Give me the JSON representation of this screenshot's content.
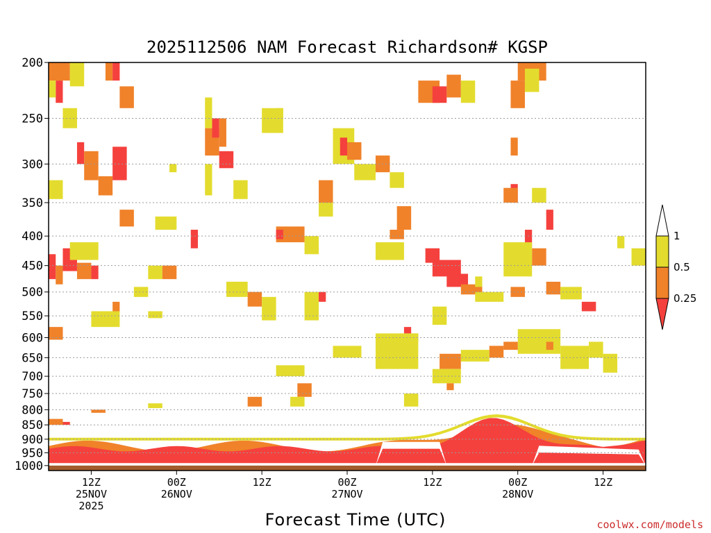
{
  "chart_data": {
    "type": "heatmap",
    "title": "2025112506 NAM Forecast Richardson# KGSP",
    "xlabel": "Forecast Time (UTC)",
    "ylabel": "",
    "credit": "coolwx.com/models",
    "x_range_hours": [
      0,
      84
    ],
    "y_axis": "pressure (hPa), log scale, inverted",
    "ylim": [
      1020,
      200
    ],
    "y_ticks": [
      "200",
      "250",
      "300",
      "350",
      "400",
      "450",
      "500",
      "550",
      "600",
      "650",
      "700",
      "750",
      "800",
      "850",
      "900",
      "950",
      "1000"
    ],
    "x_ticks": [
      {
        "hour": 6,
        "line1": "12Z",
        "line2": "25NOV",
        "line3": "2025"
      },
      {
        "hour": 18,
        "line1": "00Z",
        "line2": "26NOV",
        "line3": ""
      },
      {
        "hour": 30,
        "line1": "12Z",
        "line2": "",
        "line3": ""
      },
      {
        "hour": 42,
        "line1": "00Z",
        "line2": "27NOV",
        "line3": ""
      },
      {
        "hour": 54,
        "line1": "12Z",
        "line2": "",
        "line3": ""
      },
      {
        "hour": 66,
        "line1": "00Z",
        "line2": "28NOV",
        "line3": ""
      },
      {
        "hour": 78,
        "line1": "12Z",
        "line2": "",
        "line3": ""
      }
    ],
    "legend": {
      "levels": [
        "1",
        "0.5",
        "0.25"
      ],
      "bins": [
        {
          "name": "above 1",
          "color": "#ffffff"
        },
        {
          "name": "0.5 to 1",
          "color": "#e3dc2e"
        },
        {
          "name": "0.25 to 0.5",
          "color": "#f0822a"
        },
        {
          "name": "below 0.25",
          "color": "#f5413d"
        }
      ],
      "position": "right"
    },
    "colors": {
      "yellow": "#e3dc2e",
      "orange": "#f0822a",
      "red": "#f5413d",
      "ground": "#a25b2c",
      "grid": "#9a9a9a"
    },
    "patches": [
      {
        "t0": 0,
        "t1": 3,
        "p0": 200,
        "p1": 215,
        "cat": "orange"
      },
      {
        "t0": 1,
        "t1": 2,
        "p0": 215,
        "p1": 235,
        "cat": "red"
      },
      {
        "t0": 3,
        "t1": 5,
        "p0": 200,
        "p1": 220,
        "cat": "yellow"
      },
      {
        "t0": 0,
        "t1": 1,
        "p0": 215,
        "p1": 230,
        "cat": "yellow"
      },
      {
        "t0": 4,
        "t1": 5,
        "p0": 275,
        "p1": 300,
        "cat": "red"
      },
      {
        "t0": 5,
        "t1": 7,
        "p0": 285,
        "p1": 320,
        "cat": "orange"
      },
      {
        "t0": 7,
        "t1": 9,
        "p0": 315,
        "p1": 340,
        "cat": "orange"
      },
      {
        "t0": 8,
        "t1": 9,
        "p0": 200,
        "p1": 215,
        "cat": "orange"
      },
      {
        "t0": 9,
        "t1": 10,
        "p0": 200,
        "p1": 215,
        "cat": "red"
      },
      {
        "t0": 10,
        "t1": 12,
        "p0": 220,
        "p1": 240,
        "cat": "orange"
      },
      {
        "t0": 9,
        "t1": 11,
        "p0": 280,
        "p1": 320,
        "cat": "red"
      },
      {
        "t0": 10,
        "t1": 12,
        "p0": 360,
        "p1": 385,
        "cat": "orange"
      },
      {
        "t0": 0,
        "t1": 2,
        "p0": 320,
        "p1": 345,
        "cat": "yellow"
      },
      {
        "t0": 0,
        "t1": 1,
        "p0": 430,
        "p1": 475,
        "cat": "red"
      },
      {
        "t0": 1,
        "t1": 2,
        "p0": 450,
        "p1": 485,
        "cat": "orange"
      },
      {
        "t0": 2,
        "t1": 4,
        "p0": 420,
        "p1": 460,
        "cat": "red"
      },
      {
        "t0": 4,
        "t1": 6,
        "p0": 445,
        "p1": 475,
        "cat": "orange"
      },
      {
        "t0": 6,
        "t1": 7,
        "p0": 450,
        "p1": 475,
        "cat": "red"
      },
      {
        "t0": 3,
        "t1": 7,
        "p0": 410,
        "p1": 440,
        "cat": "yellow"
      },
      {
        "t0": 0,
        "t1": 2,
        "p0": 575,
        "p1": 605,
        "cat": "orange"
      },
      {
        "t0": 6,
        "t1": 10,
        "p0": 540,
        "p1": 575,
        "cat": "yellow"
      },
      {
        "t0": 9,
        "t1": 10,
        "p0": 520,
        "p1": 540,
        "cat": "orange"
      },
      {
        "t0": 15,
        "t1": 18,
        "p0": 370,
        "p1": 390,
        "cat": "yellow"
      },
      {
        "t0": 14,
        "t1": 16,
        "p0": 450,
        "p1": 475,
        "cat": "yellow"
      },
      {
        "t0": 16,
        "t1": 18,
        "p0": 450,
        "p1": 475,
        "cat": "orange"
      },
      {
        "t0": 17,
        "t1": 18,
        "p0": 300,
        "p1": 310,
        "cat": "yellow"
      },
      {
        "t0": 20,
        "t1": 21,
        "p0": 390,
        "p1": 420,
        "cat": "red"
      },
      {
        "t0": 22,
        "t1": 23,
        "p0": 230,
        "p1": 260,
        "cat": "yellow"
      },
      {
        "t0": 22,
        "t1": 24,
        "p0": 260,
        "p1": 290,
        "cat": "orange"
      },
      {
        "t0": 23,
        "t1": 24,
        "p0": 250,
        "p1": 270,
        "cat": "red"
      },
      {
        "t0": 24,
        "t1": 26,
        "p0": 285,
        "p1": 305,
        "cat": "red"
      },
      {
        "t0": 24,
        "t1": 25,
        "p0": 250,
        "p1": 280,
        "cat": "orange"
      },
      {
        "t0": 26,
        "t1": 28,
        "p0": 320,
        "p1": 345,
        "cat": "yellow"
      },
      {
        "t0": 22,
        "t1": 23,
        "p0": 300,
        "p1": 340,
        "cat": "yellow"
      },
      {
        "t0": 30,
        "t1": 33,
        "p0": 240,
        "p1": 265,
        "cat": "yellow"
      },
      {
        "t0": 32,
        "t1": 33,
        "p0": 240,
        "p1": 250,
        "cat": "yellow"
      },
      {
        "t0": 32,
        "t1": 36,
        "p0": 385,
        "p1": 410,
        "cat": "orange"
      },
      {
        "t0": 32,
        "t1": 33,
        "p0": 390,
        "p1": 405,
        "cat": "red"
      },
      {
        "t0": 36,
        "t1": 38,
        "p0": 400,
        "p1": 430,
        "cat": "yellow"
      },
      {
        "t0": 38,
        "t1": 40,
        "p0": 320,
        "p1": 350,
        "cat": "orange"
      },
      {
        "t0": 38,
        "t1": 40,
        "p0": 350,
        "p1": 370,
        "cat": "yellow"
      },
      {
        "t0": 40,
        "t1": 43,
        "p0": 260,
        "p1": 300,
        "cat": "yellow"
      },
      {
        "t0": 41,
        "t1": 42,
        "p0": 270,
        "p1": 290,
        "cat": "red"
      },
      {
        "t0": 42,
        "t1": 44,
        "p0": 275,
        "p1": 295,
        "cat": "orange"
      },
      {
        "t0": 43,
        "t1": 46,
        "p0": 300,
        "p1": 320,
        "cat": "yellow"
      },
      {
        "t0": 46,
        "t1": 48,
        "p0": 290,
        "p1": 310,
        "cat": "orange"
      },
      {
        "t0": 48,
        "t1": 50,
        "p0": 310,
        "p1": 330,
        "cat": "yellow"
      },
      {
        "t0": 49,
        "t1": 51,
        "p0": 355,
        "p1": 390,
        "cat": "orange"
      },
      {
        "t0": 48,
        "t1": 50,
        "p0": 390,
        "p1": 405,
        "cat": "orange"
      },
      {
        "t0": 46,
        "t1": 50,
        "p0": 410,
        "p1": 440,
        "cat": "yellow"
      },
      {
        "t0": 52,
        "t1": 55,
        "p0": 215,
        "p1": 235,
        "cat": "orange"
      },
      {
        "t0": 54,
        "t1": 56,
        "p0": 220,
        "p1": 235,
        "cat": "red"
      },
      {
        "t0": 56,
        "t1": 58,
        "p0": 210,
        "p1": 230,
        "cat": "orange"
      },
      {
        "t0": 58,
        "t1": 60,
        "p0": 215,
        "p1": 235,
        "cat": "yellow"
      },
      {
        "t0": 53,
        "t1": 55,
        "p0": 420,
        "p1": 445,
        "cat": "red"
      },
      {
        "t0": 54,
        "t1": 58,
        "p0": 440,
        "p1": 470,
        "cat": "red"
      },
      {
        "t0": 56,
        "t1": 59,
        "p0": 465,
        "p1": 490,
        "cat": "red"
      },
      {
        "t0": 58,
        "t1": 61,
        "p0": 485,
        "p1": 505,
        "cat": "orange"
      },
      {
        "t0": 60,
        "t1": 61,
        "p0": 470,
        "p1": 490,
        "cat": "yellow"
      },
      {
        "t0": 54,
        "t1": 56,
        "p0": 530,
        "p1": 570,
        "cat": "yellow"
      },
      {
        "t0": 50,
        "t1": 52,
        "p0": 590,
        "p1": 610,
        "cat": "orange"
      },
      {
        "t0": 50,
        "t1": 51,
        "p0": 575,
        "p1": 590,
        "cat": "red"
      },
      {
        "t0": 55,
        "t1": 58,
        "p0": 640,
        "p1": 680,
        "cat": "orange"
      },
      {
        "t0": 54,
        "t1": 58,
        "p0": 680,
        "p1": 720,
        "cat": "yellow"
      },
      {
        "t0": 56,
        "t1": 57,
        "p0": 720,
        "p1": 740,
        "cat": "orange"
      },
      {
        "t0": 58,
        "t1": 62,
        "p0": 630,
        "p1": 660,
        "cat": "yellow"
      },
      {
        "t0": 62,
        "t1": 64,
        "p0": 620,
        "p1": 650,
        "cat": "orange"
      },
      {
        "t0": 66,
        "t1": 70,
        "p0": 200,
        "p1": 215,
        "cat": "orange"
      },
      {
        "t0": 65,
        "t1": 67,
        "p0": 215,
        "p1": 240,
        "cat": "orange"
      },
      {
        "t0": 67,
        "t1": 69,
        "p0": 205,
        "p1": 225,
        "cat": "yellow"
      },
      {
        "t0": 65,
        "t1": 66,
        "p0": 270,
        "p1": 290,
        "cat": "orange"
      },
      {
        "t0": 65,
        "t1": 66,
        "p0": 325,
        "p1": 350,
        "cat": "red"
      },
      {
        "t0": 64,
        "t1": 66,
        "p0": 330,
        "p1": 350,
        "cat": "orange"
      },
      {
        "t0": 68,
        "t1": 70,
        "p0": 330,
        "p1": 350,
        "cat": "yellow"
      },
      {
        "t0": 70,
        "t1": 71,
        "p0": 360,
        "p1": 390,
        "cat": "red"
      },
      {
        "t0": 67,
        "t1": 68,
        "p0": 390,
        "p1": 420,
        "cat": "red"
      },
      {
        "t0": 68,
        "t1": 70,
        "p0": 420,
        "p1": 450,
        "cat": "orange"
      },
      {
        "t0": 64,
        "t1": 68,
        "p0": 410,
        "p1": 470,
        "cat": "yellow"
      },
      {
        "t0": 70,
        "t1": 72,
        "p0": 480,
        "p1": 505,
        "cat": "orange"
      },
      {
        "t0": 65,
        "t1": 67,
        "p0": 490,
        "p1": 510,
        "cat": "orange"
      },
      {
        "t0": 75,
        "t1": 77,
        "p0": 520,
        "p1": 540,
        "cat": "red"
      },
      {
        "t0": 72,
        "t1": 75,
        "p0": 490,
        "p1": 515,
        "cat": "yellow"
      },
      {
        "t0": 66,
        "t1": 72,
        "p0": 580,
        "p1": 640,
        "cat": "yellow"
      },
      {
        "t0": 64,
        "t1": 66,
        "p0": 610,
        "p1": 630,
        "cat": "orange"
      },
      {
        "t0": 70,
        "t1": 71,
        "p0": 610,
        "p1": 630,
        "cat": "orange"
      },
      {
        "t0": 72,
        "t1": 76,
        "p0": 620,
        "p1": 680,
        "cat": "yellow"
      },
      {
        "t0": 76,
        "t1": 78,
        "p0": 610,
        "p1": 650,
        "cat": "yellow"
      },
      {
        "t0": 82,
        "t1": 84,
        "p0": 420,
        "p1": 450,
        "cat": "yellow"
      },
      {
        "t0": 80,
        "t1": 81,
        "p0": 400,
        "p1": 420,
        "cat": "yellow"
      },
      {
        "t0": 2,
        "t1": 4,
        "p0": 240,
        "p1": 260,
        "cat": "yellow"
      },
      {
        "t0": 14,
        "t1": 16,
        "p0": 540,
        "p1": 555,
        "cat": "yellow"
      },
      {
        "t0": 12,
        "t1": 14,
        "p0": 490,
        "p1": 510,
        "cat": "yellow"
      },
      {
        "t0": 25,
        "t1": 28,
        "p0": 480,
        "p1": 510,
        "cat": "yellow"
      },
      {
        "t0": 28,
        "t1": 30,
        "p0": 500,
        "p1": 530,
        "cat": "orange"
      },
      {
        "t0": 30,
        "t1": 32,
        "p0": 510,
        "p1": 560,
        "cat": "yellow"
      },
      {
        "t0": 36,
        "t1": 38,
        "p0": 500,
        "p1": 560,
        "cat": "yellow"
      },
      {
        "t0": 38,
        "t1": 39,
        "p0": 500,
        "p1": 520,
        "cat": "red"
      },
      {
        "t0": 46,
        "t1": 52,
        "p0": 590,
        "p1": 680,
        "cat": "yellow"
      },
      {
        "t0": 40,
        "t1": 44,
        "p0": 620,
        "p1": 650,
        "cat": "yellow"
      },
      {
        "t0": 32,
        "t1": 36,
        "p0": 670,
        "p1": 700,
        "cat": "yellow"
      },
      {
        "t0": 35,
        "t1": 37,
        "p0": 720,
        "p1": 760,
        "cat": "orange"
      },
      {
        "t0": 34,
        "t1": 36,
        "p0": 760,
        "p1": 790,
        "cat": "yellow"
      },
      {
        "t0": 28,
        "t1": 30,
        "p0": 760,
        "p1": 790,
        "cat": "orange"
      },
      {
        "t0": 50,
        "t1": 52,
        "p0": 750,
        "p1": 790,
        "cat": "yellow"
      },
      {
        "t0": 60,
        "t1": 64,
        "p0": 500,
        "p1": 520,
        "cat": "yellow"
      },
      {
        "t0": 78,
        "t1": 80,
        "p0": 640,
        "p1": 690,
        "cat": "yellow"
      },
      {
        "t0": 0,
        "t1": 2,
        "p0": 830,
        "p1": 850,
        "cat": "orange"
      },
      {
        "t0": 2,
        "t1": 3,
        "p0": 840,
        "p1": 850,
        "cat": "red"
      },
      {
        "t0": 6,
        "t1": 8,
        "p0": 800,
        "p1": 810,
        "cat": "orange"
      },
      {
        "t0": 14,
        "t1": 16,
        "p0": 780,
        "p1": 795,
        "cat": "yellow"
      }
    ]
  }
}
